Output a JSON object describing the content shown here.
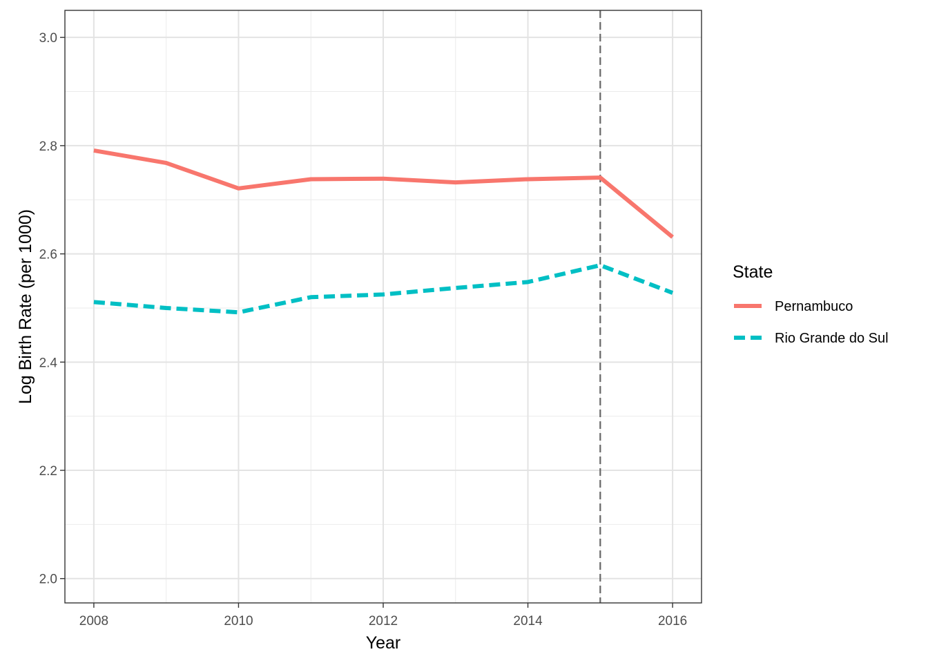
{
  "chart_data": {
    "type": "line",
    "title": "",
    "xlabel": "Year",
    "ylabel": "Log Birth Rate (per 1000)",
    "x": [
      2008,
      2009,
      2010,
      2011,
      2012,
      2013,
      2014,
      2015,
      2016
    ],
    "xlim": [
      2007.6,
      2016.4
    ],
    "ylim": [
      1.955,
      3.05
    ],
    "x_ticks": [
      "2008",
      "2010",
      "2012",
      "2014",
      "2016"
    ],
    "y_ticks": [
      "2.0",
      "2.2",
      "2.4",
      "2.6",
      "2.8",
      "3.0"
    ],
    "grid": true,
    "legend_position": "right",
    "legend_title": "State",
    "vline": {
      "x": 2015,
      "style": "dashed",
      "color": "#666666"
    },
    "series": [
      {
        "name": "Pernambuco",
        "color": "#F8766D",
        "linetype": "solid",
        "values": [
          2.791,
          2.768,
          2.721,
          2.738,
          2.739,
          2.732,
          2.738,
          2.741,
          2.631
        ]
      },
      {
        "name": "Rio Grande do Sul",
        "color": "#00BFC4",
        "linetype": "dashed",
        "values": [
          2.511,
          2.5,
          2.492,
          2.52,
          2.525,
          2.537,
          2.548,
          2.579,
          2.528
        ]
      }
    ]
  }
}
